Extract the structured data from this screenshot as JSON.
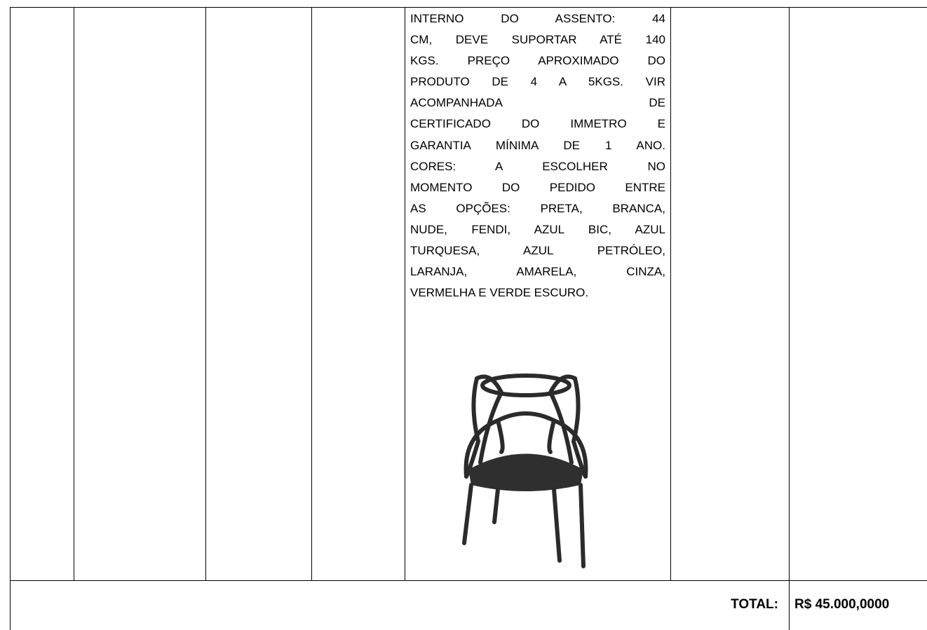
{
  "table": {
    "description_lines": [
      "INTERNO DO ASSENTO: 44",
      "CM, DEVE SUPORTAR ATÉ 140",
      "KGS. PREÇO APROXIMADO DO",
      "PRODUTO DE 4 A 5KGS. VIR",
      "ACOMPANHADA DE",
      "CERTIFICADO DO IMMETRO E",
      "GARANTIA MÍNIMA DE 1 ANO.",
      "CORES: A ESCOLHER NO",
      "MOMENTO DO PEDIDO ENTRE",
      "AS OPÇÕES: PRETA, BRANCA,",
      "NUDE, FENDI, AZUL BIC, AZUL",
      "TURQUESA, AZUL PETRÓLEO,",
      "LARANJA, AMARELA, CINZA,",
      "VERMELHA E VERDE ESCURO."
    ],
    "total_label": "TOTAL:",
    "total_value": "R$ 45.000,0000"
  }
}
